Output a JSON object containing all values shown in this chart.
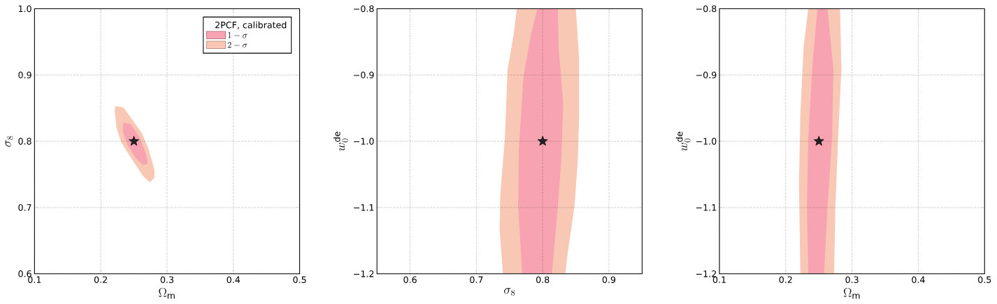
{
  "chart_data": [
    {
      "type": "area",
      "xlabel": "\\Omega_\\mathrm{m}",
      "ylabel": "\\sigma_8",
      "xlim": [
        0.1,
        0.5
      ],
      "ylim": [
        0.6,
        1.0
      ],
      "xticks": [
        0.1,
        0.2,
        0.3,
        0.4,
        0.5
      ],
      "yticks": [
        0.6,
        0.7,
        0.8,
        0.9,
        {
          "value": 1.0,
          "label": "1.0"
        }
      ],
      "grid": true,
      "legend": "top right",
      "legend_title": "2PCF, calibrated",
      "series": [
        {
          "name": "1-\\sigma",
          "color": "#f7a3b2",
          "x": [
            0.234,
            0.245,
            0.259,
            0.269,
            0.271,
            0.264,
            0.253,
            0.24,
            0.233
          ],
          "values": [
            0.828,
            0.826,
            0.805,
            0.778,
            0.766,
            0.764,
            0.774,
            0.795,
            0.816
          ]
        },
        {
          "name": "2-\\sigma",
          "color": "#f9c8b4",
          "x": [
            0.222,
            0.234,
            0.248,
            0.262,
            0.272,
            0.281,
            0.281,
            0.274,
            0.264,
            0.248,
            0.231,
            0.224,
            0.221
          ],
          "values": [
            0.853,
            0.851,
            0.832,
            0.812,
            0.788,
            0.757,
            0.745,
            0.738,
            0.747,
            0.771,
            0.798,
            0.819,
            0.846
          ]
        },
        {
          "type": "scatter",
          "color": "#222222",
          "marker": "star",
          "x": [
            0.25
          ],
          "values": [
            0.8
          ]
        }
      ]
    },
    {
      "type": "area",
      "xlabel": "\\sigma_8",
      "ylabel": "w_0^\\mathrm{de}",
      "xlim": [
        0.55,
        0.95
      ],
      "ylim": [
        -1.2,
        -0.8
      ],
      "xticks": [
        0.6,
        0.7,
        0.8,
        0.9
      ],
      "yticks": [
        {
          "value": -1.2,
          "label": "−1.2"
        },
        {
          "value": -1.1,
          "label": "−1.1"
        },
        {
          "value": -1.0,
          "label": "−1.0"
        },
        {
          "value": -0.9,
          "label": "−0.9"
        },
        {
          "value": -0.8,
          "label": "−0.8"
        }
      ],
      "grid": true,
      "series": [
        {
          "color": "#f7a3b2",
          "x": [
            0.792,
            0.823,
            0.824,
            0.831,
            0.828,
            0.823,
            0.814,
            0.769,
            0.763,
            0.764,
            0.771,
            0.782
          ],
          "values": [
            -0.8,
            -0.8,
            -0.857,
            -0.943,
            -1.029,
            -1.098,
            -1.2,
            -1.2,
            -1.098,
            -1.012,
            -0.902,
            -0.84
          ]
        },
        {
          "color": "#f9c8b4",
          "x": [
            0.761,
            0.85,
            0.855,
            0.855,
            0.853,
            0.848,
            0.838,
            0.834,
            0.74,
            0.735,
            0.736,
            0.743,
            0.747,
            0.756
          ],
          "values": [
            -0.8,
            -0.8,
            -0.874,
            -0.96,
            -1.029,
            -1.098,
            -1.167,
            -1.2,
            -1.2,
            -1.133,
            -1.081,
            -0.995,
            -0.892,
            -0.84
          ]
        },
        {
          "type": "scatter",
          "color": "#222222",
          "marker": "star",
          "x": [
            0.8
          ],
          "values": [
            -1.0
          ]
        }
      ]
    },
    {
      "type": "area",
      "xlabel": "\\Omega_\\mathrm{m}",
      "ylabel": "w_0^\\mathrm{de}",
      "xlim": [
        0.1,
        0.5
      ],
      "ylim": [
        -1.2,
        -0.8
      ],
      "xticks": [
        0.1,
        0.2,
        0.3,
        0.4,
        0.5
      ],
      "yticks": [
        {
          "value": -1.2,
          "label": "−1.2"
        },
        {
          "value": -1.1,
          "label": "−1.1"
        },
        {
          "value": -1.0,
          "label": "−1.0"
        },
        {
          "value": -0.9,
          "label": "−0.9"
        },
        {
          "value": -0.8,
          "label": "−0.8"
        }
      ],
      "grid": true,
      "series": [
        {
          "color": "#f7a3b2",
          "x": [
            0.248,
            0.263,
            0.272,
            0.27,
            0.263,
            0.258,
            0.234,
            0.232,
            0.234,
            0.241
          ],
          "values": [
            -0.8,
            -0.8,
            -0.891,
            -0.995,
            -1.098,
            -1.2,
            -1.2,
            -1.098,
            -0.995,
            -0.874
          ]
        },
        {
          "color": "#f9c8b4",
          "x": [
            0.234,
            0.282,
            0.284,
            0.279,
            0.275,
            0.273,
            0.222,
            0.22,
            0.222,
            0.227
          ],
          "values": [
            -0.8,
            -0.8,
            -0.891,
            -0.995,
            -1.098,
            -1.2,
            -1.2,
            -1.064,
            -0.96,
            -0.857
          ]
        },
        {
          "type": "scatter",
          "color": "#222222",
          "marker": "star",
          "x": [
            0.25
          ],
          "values": [
            -1.0
          ]
        }
      ]
    }
  ]
}
